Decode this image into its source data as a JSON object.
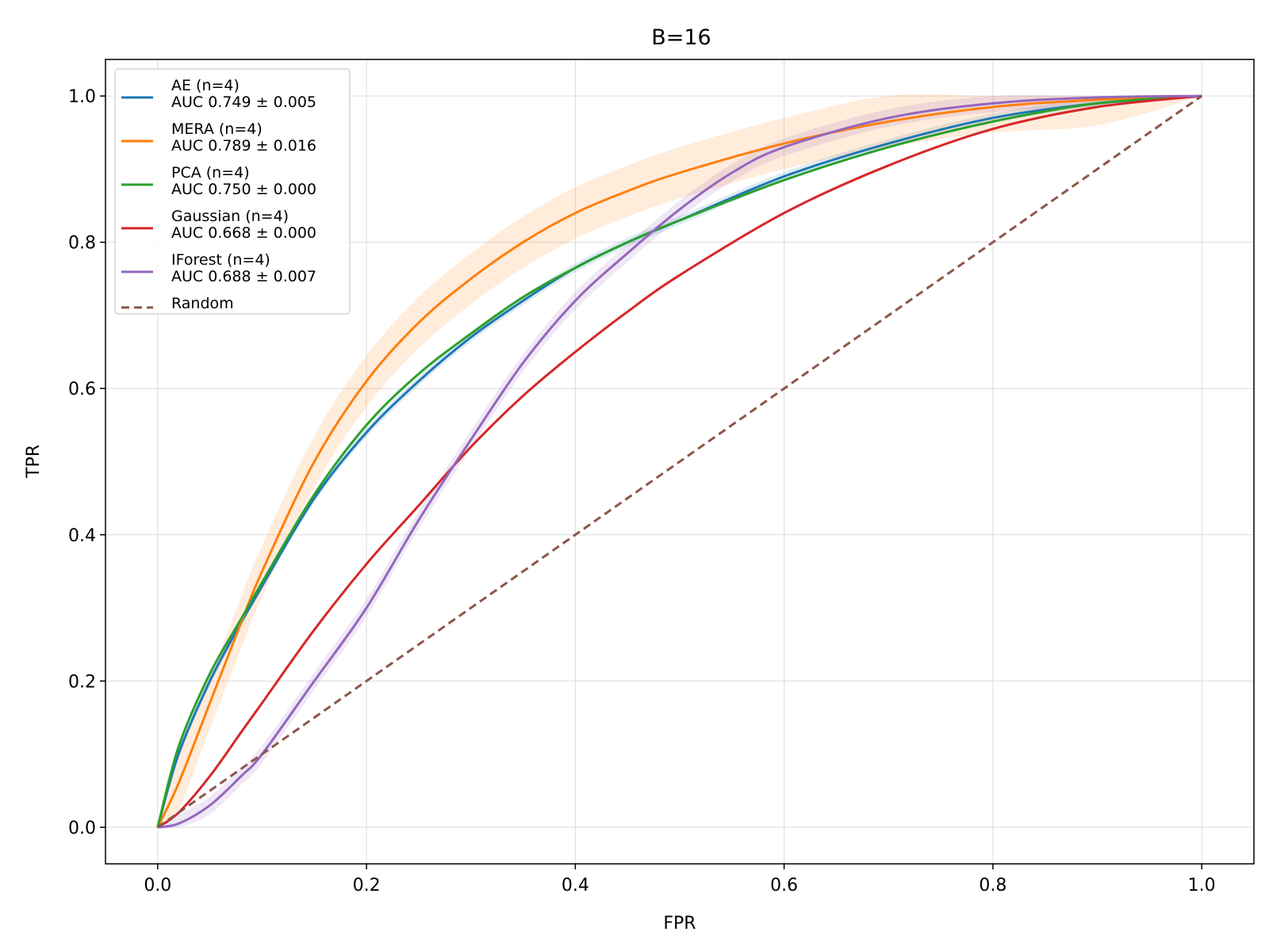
{
  "chart_data": {
    "type": "line",
    "title": "B=16",
    "xlabel": "FPR",
    "ylabel": "TPR",
    "xlim": [
      -0.05,
      1.05
    ],
    "ylim": [
      -0.05,
      1.05
    ],
    "xticks": [
      "0.0",
      "0.2",
      "0.4",
      "0.6",
      "0.8",
      "1.0"
    ],
    "yticks": [
      "0.0",
      "0.2",
      "0.4",
      "0.6",
      "0.8",
      "1.0"
    ],
    "grid": true,
    "legend_position": "top-left",
    "series": [
      {
        "name": "AE (n=4)",
        "auc_label": "AUC 0.749 ± 0.005",
        "color": "#1f77b4",
        "dash": "solid",
        "band": 0.006,
        "x": [
          0,
          0.02,
          0.05,
          0.08,
          0.1,
          0.15,
          0.2,
          0.25,
          0.3,
          0.35,
          0.4,
          0.45,
          0.5,
          0.6,
          0.7,
          0.8,
          0.9,
          1.0
        ],
        "y": [
          0,
          0.1,
          0.2,
          0.28,
          0.33,
          0.45,
          0.54,
          0.61,
          0.67,
          0.72,
          0.765,
          0.8,
          0.83,
          0.89,
          0.935,
          0.97,
          0.99,
          1.0
        ]
      },
      {
        "name": "MERA (n=4)",
        "auc_label": "AUC 0.789 ± 0.016",
        "color": "#ff7f0e",
        "dash": "solid",
        "band": 0.035,
        "x": [
          0,
          0.02,
          0.05,
          0.08,
          0.1,
          0.15,
          0.2,
          0.25,
          0.3,
          0.35,
          0.4,
          0.45,
          0.5,
          0.6,
          0.7,
          0.8,
          0.9,
          1.0
        ],
        "y": [
          0,
          0.06,
          0.17,
          0.28,
          0.35,
          0.5,
          0.61,
          0.69,
          0.75,
          0.8,
          0.84,
          0.87,
          0.895,
          0.935,
          0.965,
          0.985,
          0.995,
          1.0
        ]
      },
      {
        "name": "PCA (n=4)",
        "auc_label": "AUC 0.750 ± 0.000",
        "color": "#2ca02c",
        "dash": "solid",
        "band": 0,
        "x": [
          0,
          0.02,
          0.05,
          0.08,
          0.1,
          0.15,
          0.2,
          0.25,
          0.3,
          0.35,
          0.4,
          0.45,
          0.5,
          0.6,
          0.7,
          0.8,
          0.9,
          1.0
        ],
        "y": [
          0,
          0.11,
          0.21,
          0.285,
          0.335,
          0.455,
          0.55,
          0.62,
          0.675,
          0.725,
          0.765,
          0.8,
          0.83,
          0.885,
          0.93,
          0.965,
          0.99,
          1.0
        ]
      },
      {
        "name": "Gaussian (n=4)",
        "auc_label": "AUC 0.668 ± 0.000",
        "color": "#d62728",
        "dash": "solid",
        "band": 0,
        "x": [
          0,
          0.02,
          0.05,
          0.08,
          0.1,
          0.15,
          0.2,
          0.25,
          0.3,
          0.35,
          0.4,
          0.45,
          0.5,
          0.6,
          0.7,
          0.8,
          0.9,
          1.0
        ],
        "y": [
          0,
          0.02,
          0.07,
          0.13,
          0.17,
          0.27,
          0.36,
          0.44,
          0.52,
          0.59,
          0.65,
          0.705,
          0.755,
          0.84,
          0.905,
          0.955,
          0.985,
          1.0
        ]
      },
      {
        "name": "IForest (n=4)",
        "auc_label": "AUC 0.688 ± 0.007",
        "color": "#9467bd",
        "dash": "solid",
        "band": 0.012,
        "x": [
          0,
          0.02,
          0.05,
          0.08,
          0.1,
          0.15,
          0.2,
          0.25,
          0.3,
          0.35,
          0.4,
          0.45,
          0.5,
          0.55,
          0.6,
          0.7,
          0.8,
          0.9,
          1.0
        ],
        "y": [
          0,
          0.005,
          0.03,
          0.07,
          0.1,
          0.2,
          0.3,
          0.42,
          0.53,
          0.635,
          0.72,
          0.785,
          0.845,
          0.895,
          0.93,
          0.97,
          0.99,
          0.998,
          1.0
        ]
      },
      {
        "name": "Random",
        "auc_label": "",
        "color": "#8c564b",
        "dash": "dashed",
        "band": 0,
        "x": [
          0,
          1
        ],
        "y": [
          0,
          1
        ]
      }
    ]
  }
}
